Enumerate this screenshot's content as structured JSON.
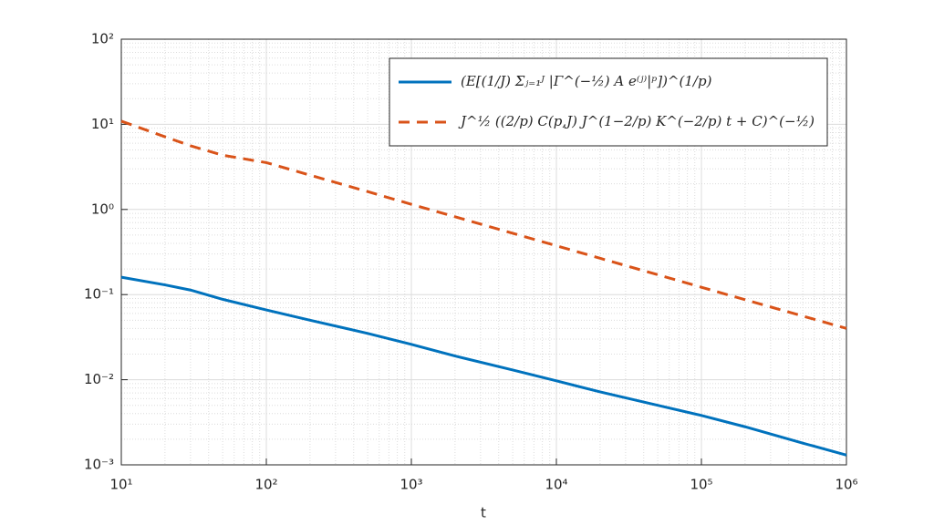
{
  "chart_data": {
    "type": "line",
    "xlabel": "t",
    "x": [
      10,
      20,
      30,
      50,
      100,
      200,
      500,
      1000,
      2000,
      5000,
      10000,
      20000,
      50000,
      100000,
      200000,
      500000,
      1000000
    ],
    "series": [
      {
        "name": "(E[(1/J) Σⱼ₌₁ᴶ |Γ^(−½) A e⁽ʲ⁾|ᵖ])^(1/p)",
        "color": "#0072bd",
        "dash": "solid",
        "values": [
          0.16,
          0.13,
          0.113,
          0.088,
          0.066,
          0.05,
          0.035,
          0.026,
          0.019,
          0.013,
          0.0097,
          0.0072,
          0.005,
          0.0038,
          0.0028,
          0.0018,
          0.0013
        ]
      },
      {
        "name": "J^½ ((2/p) C(p,J) J^(1−2/p) K^(−2/p) t + C)^(−½)",
        "color": "#d95319",
        "dash": "dashed",
        "values": [
          10.9,
          7.14,
          5.6,
          4.34,
          3.55,
          2.53,
          1.62,
          1.15,
          0.82,
          0.525,
          0.375,
          0.267,
          0.171,
          0.122,
          0.087,
          0.056,
          0.04
        ]
      }
    ],
    "xscale": "log",
    "yscale": "log",
    "xlim": [
      10,
      1000000
    ],
    "ylim": [
      0.001,
      100
    ],
    "xticks": [
      {
        "value": 10,
        "label": "10¹"
      },
      {
        "value": 100,
        "label": "10²"
      },
      {
        "value": 1000,
        "label": "10³"
      },
      {
        "value": 10000,
        "label": "10⁴"
      },
      {
        "value": 100000,
        "label": "10⁵"
      },
      {
        "value": 1000000,
        "label": "10⁶"
      }
    ],
    "yticks": [
      {
        "value": 0.001,
        "label": "10⁻³"
      },
      {
        "value": 0.01,
        "label": "10⁻²"
      },
      {
        "value": 0.1,
        "label": "10⁻¹"
      },
      {
        "value": 1,
        "label": "10⁰"
      },
      {
        "value": 10,
        "label": "10¹"
      },
      {
        "value": 100,
        "label": "10²"
      }
    ],
    "grid": true,
    "minor_grid": true,
    "legend": "upper right"
  }
}
